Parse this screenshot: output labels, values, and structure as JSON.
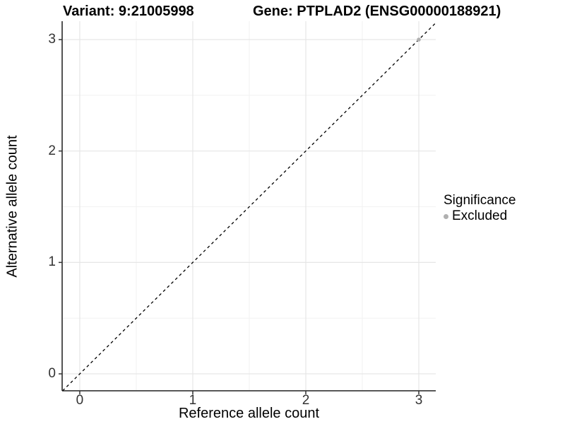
{
  "titles": {
    "variant": "Variant: 9:21005998",
    "gene": "Gene: PTPLAD2 (ENSG00000188921)"
  },
  "legend": {
    "title": "Significance",
    "entries": [
      {
        "label": "Excluded",
        "color": "#b0b0b0"
      }
    ]
  },
  "chart_data": {
    "type": "scatter",
    "title": "Variant: 9:21005998   Gene: PTPLAD2 (ENSG00000188921)",
    "xlabel": "Reference allele count",
    "ylabel": "Alternative allele count",
    "xlim": [
      -0.156,
      3.15
    ],
    "ylim": [
      -0.152,
      3.165
    ],
    "x_ticks": [
      0,
      1,
      2,
      3
    ],
    "y_ticks": [
      0,
      1,
      2,
      3
    ],
    "x_minor_ticks": [
      0.5,
      1.5,
      2.5
    ],
    "y_minor_ticks": [
      0.5,
      1.5,
      2.5
    ],
    "grid": true,
    "legend_position": "right",
    "legend_title": "Significance",
    "reference_line": {
      "type": "identity",
      "style": "dashed",
      "color": "#000000"
    },
    "series": [
      {
        "name": "Excluded",
        "color": "#b0b0b0",
        "points": [
          [
            3,
            3
          ]
        ]
      }
    ],
    "colors": {
      "grid_major": "#e6e6e6",
      "grid_minor": "#f2f2f2",
      "axis_line": "#404040",
      "tick_mark": "#333333"
    }
  }
}
